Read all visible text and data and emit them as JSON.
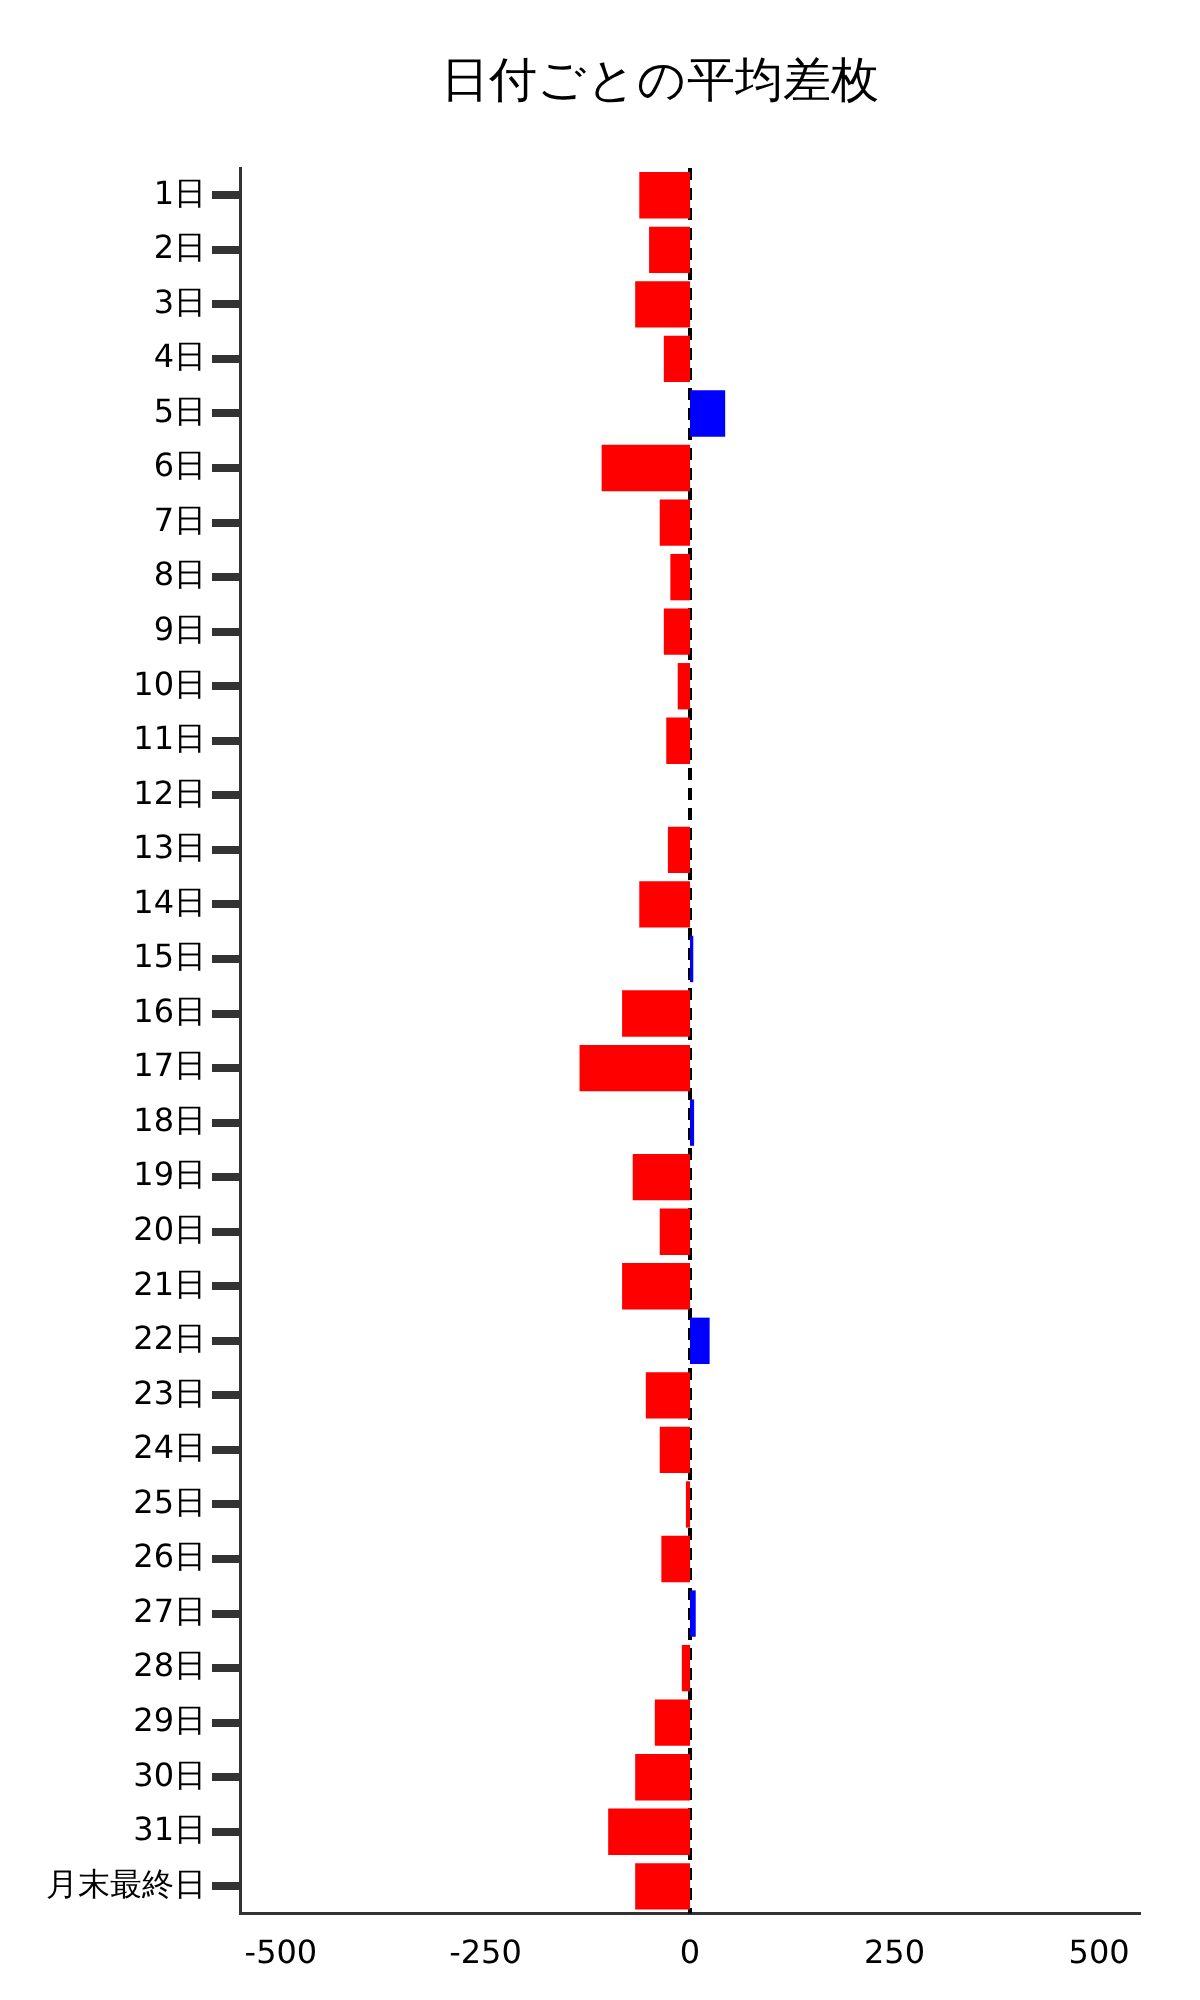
{
  "chart_data": {
    "type": "bar",
    "orientation": "horizontal",
    "title": "日付ごとの平均差枚",
    "categories": [
      "1日",
      "2日",
      "3日",
      "4日",
      "5日",
      "6日",
      "7日",
      "8日",
      "9日",
      "10日",
      "11日",
      "12日",
      "13日",
      "14日",
      "15日",
      "16日",
      "17日",
      "18日",
      "19日",
      "20日",
      "21日",
      "22日",
      "23日",
      "24日",
      "25日",
      "26日",
      "27日",
      "28日",
      "29日",
      "30日",
      "31日",
      "月末最終日"
    ],
    "values": [
      -62,
      -50,
      -67,
      -32,
      43,
      -108,
      -37,
      -24,
      -32,
      -15,
      -29,
      null,
      -27,
      -62,
      4,
      -83,
      -135,
      5,
      -70,
      -37,
      -83,
      24,
      -54,
      -37,
      -5,
      -35,
      7,
      -10,
      -43,
      -67,
      -100,
      -67
    ],
    "colors": [
      "#ff0000",
      "#ff0000",
      "#ff0000",
      "#ff0000",
      "#0000ff",
      "#ff0000",
      "#ff0000",
      "#ff0000",
      "#ff0000",
      "#ff0000",
      "#ff0000",
      "#0000ff",
      "#ff0000",
      "#ff0000",
      "#0000ff",
      "#ff0000",
      "#ff0000",
      "#0000ff",
      "#ff0000",
      "#ff0000",
      "#ff0000",
      "#0000ff",
      "#ff0000",
      "#ff0000",
      "#ff0000",
      "#ff0000",
      "#0000ff",
      "#ff0000",
      "#ff0000",
      "#ff0000",
      "#ff0000",
      "#ff0000"
    ],
    "xlim": [
      -550,
      550
    ],
    "xticks": [
      -500,
      -250,
      0,
      250,
      500
    ],
    "ref_lines": [
      {
        "axis": "x",
        "value": 0,
        "color": "#000000",
        "line_style": "dashed"
      }
    ],
    "grid": false,
    "legend": false
  }
}
